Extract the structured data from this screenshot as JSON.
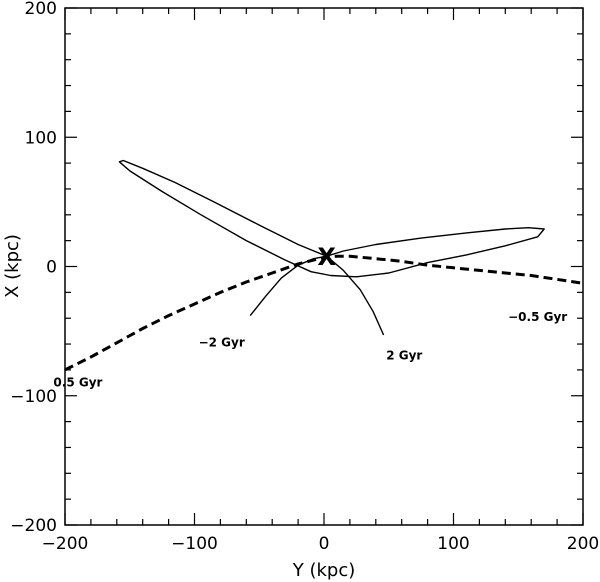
{
  "chart_data": {
    "type": "line",
    "xlabel": "Y (kpc)",
    "ylabel": "X (kpc)",
    "xlim": [
      -200,
      200
    ],
    "ylim": [
      -200,
      200
    ],
    "xticks": [
      -200,
      -100,
      0,
      100,
      200
    ],
    "yticks": [
      -200,
      -100,
      0,
      100,
      200
    ],
    "xtick_labels": [
      "−200",
      "−100",
      "0",
      "100",
      "200"
    ],
    "ytick_labels": [
      "−200",
      "−100",
      "0",
      "100",
      "200"
    ],
    "grid": false,
    "marker": {
      "label": "X",
      "x": 2,
      "y": 8
    },
    "series": [
      {
        "style": "solid",
        "points": [
          [
            -57,
            -38
          ],
          [
            -45,
            -23
          ],
          [
            -33,
            -9
          ],
          [
            -20,
            1
          ],
          [
            -8,
            6
          ],
          [
            2,
            8
          ],
          [
            15,
            12
          ],
          [
            40,
            17
          ],
          [
            75,
            22
          ],
          [
            110,
            26
          ],
          [
            140,
            29
          ],
          [
            158,
            30
          ],
          [
            170,
            29
          ],
          [
            165,
            23
          ],
          [
            140,
            16
          ],
          [
            110,
            9
          ],
          [
            80,
            3
          ],
          [
            50,
            -5
          ],
          [
            25,
            -8
          ],
          [
            5,
            -7
          ],
          [
            -10,
            -4
          ],
          [
            -30,
            5
          ],
          [
            -60,
            20
          ],
          [
            -95,
            40
          ],
          [
            -125,
            58
          ],
          [
            -150,
            74
          ],
          [
            -158,
            81
          ],
          [
            -155,
            82
          ],
          [
            -140,
            76
          ],
          [
            -115,
            65
          ],
          [
            -85,
            50
          ],
          [
            -50,
            32
          ],
          [
            -20,
            17
          ],
          [
            2,
            8
          ],
          [
            15,
            -3
          ],
          [
            28,
            -18
          ],
          [
            38,
            -35
          ],
          [
            46,
            -53
          ]
        ]
      },
      {
        "style": "dashed",
        "points": [
          [
            -200,
            -80
          ],
          [
            -180,
            -70
          ],
          [
            -160,
            -59
          ],
          [
            -140,
            -48
          ],
          [
            -120,
            -38
          ],
          [
            -100,
            -29
          ],
          [
            -80,
            -20
          ],
          [
            -60,
            -12
          ],
          [
            -40,
            -5
          ],
          [
            -20,
            2
          ],
          [
            0,
            7
          ],
          [
            10,
            8
          ],
          [
            20,
            8
          ],
          [
            40,
            6
          ],
          [
            60,
            4
          ],
          [
            80,
            1
          ],
          [
            100,
            -1
          ],
          [
            120,
            -3
          ],
          [
            140,
            -5
          ],
          [
            160,
            -7
          ],
          [
            180,
            -10
          ],
          [
            200,
            -13
          ]
        ]
      }
    ],
    "annotations": [
      {
        "text": "−2 Gyr",
        "x": -79,
        "y": -62
      },
      {
        "text": "2 Gyr",
        "x": 62,
        "y": -72
      },
      {
        "text": "−0.5 Gyr",
        "x": 165,
        "y": -42
      },
      {
        "text": "0.5 Gyr",
        "x": -190,
        "y": -93
      }
    ]
  }
}
